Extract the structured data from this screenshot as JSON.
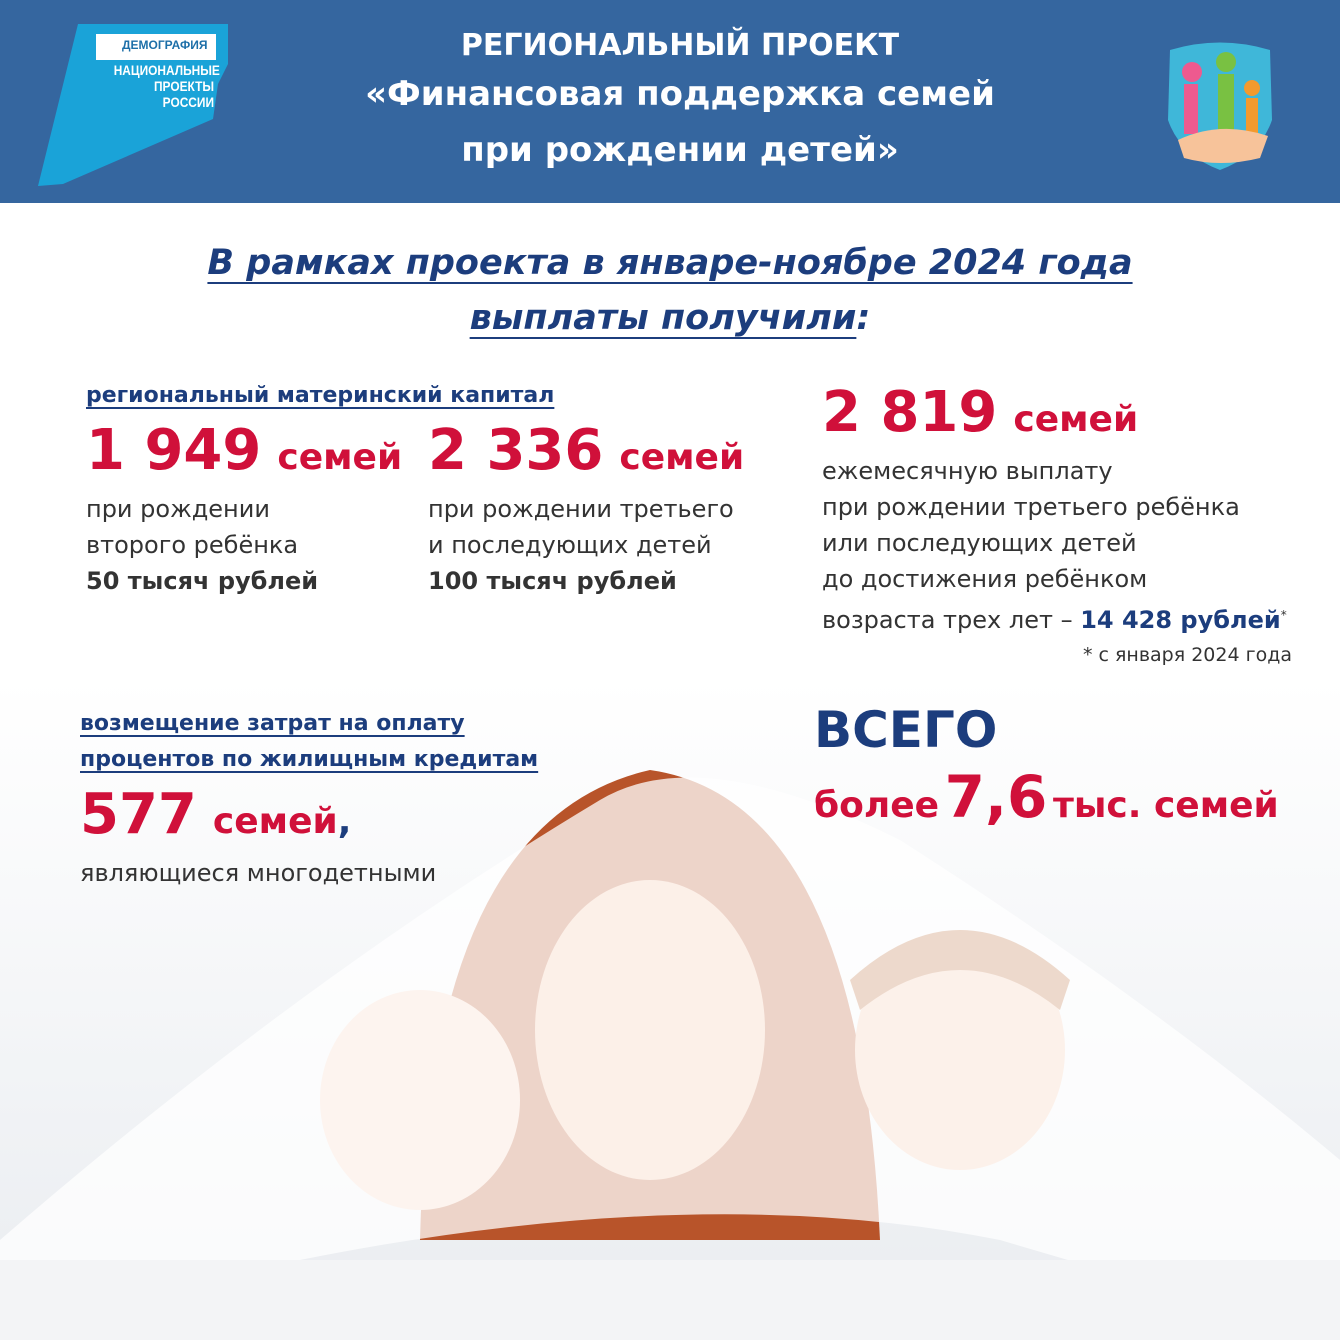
{
  "header": {
    "logo_top": "ДЕМОГРАФИЯ",
    "logo_bottom": "НАЦИОНАЛЬНЫЕ ПРОЕКТЫ РОССИИ",
    "title_line1": "РЕГИОНАЛЬНЫЙ ПРОЕКТ",
    "title_line2": "«Финансовая поддержка семей",
    "title_line3": "при рождении детей»"
  },
  "subtitle": {
    "line1": "В рамках проекта в январе-ноябре 2024 года",
    "line2": "выплаты получили",
    "colon": ":"
  },
  "capital": {
    "label": "региональный материнский капитал",
    "items": [
      {
        "number": "1 949",
        "unit": "семей",
        "desc1": "при рождении",
        "desc2": "второго ребёнка",
        "amount": "50 тысяч рублей"
      },
      {
        "number": "2 336",
        "unit": "семей",
        "desc1": "при рождении третьего",
        "desc2": "и последующих детей",
        "amount": "100 тысяч рублей"
      }
    ]
  },
  "monthly": {
    "number": "2 819",
    "unit": "семей",
    "lines": [
      "ежемесячную выплату",
      "при рождении третьего ребёнка",
      "или последующих детей",
      "до достижения ребёнком"
    ],
    "last": "возраста трех лет –",
    "amount": "14 428 рублей",
    "star": "*",
    "footnote": "* с января 2024 года"
  },
  "mortgage": {
    "label1": "возмещение затрат на оплату",
    "label2": "процентов по жилищным кредитам",
    "number": "577",
    "unit": "семей",
    "comma": ",",
    "desc": "являющиеся многодетными"
  },
  "total": {
    "title": "ВСЕГО",
    "prefix": "более",
    "number": "7,6",
    "unit": "тыс. семей"
  },
  "colors": {
    "header": "#35669f",
    "accent_red": "#d0103a",
    "navy": "#1c3d7d"
  }
}
